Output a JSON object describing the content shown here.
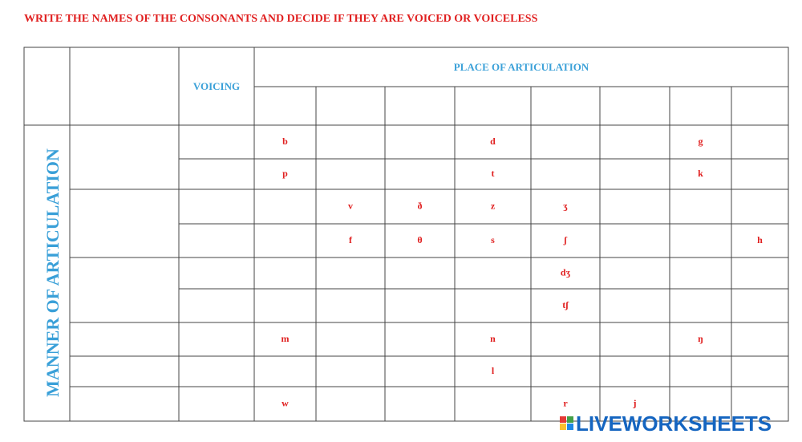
{
  "title": "WRITE THE NAMES OF THE CONSONANTS  AND DECIDE  IF THEY ARE VOICED  OR VOICELESS",
  "table": {
    "voicing_header": "VOICING",
    "place_header": "PLACE OF ARTICULATION",
    "manner_header": "MANNER OF ARTICULATION",
    "rows": [
      [
        "b",
        null,
        null,
        "d",
        null,
        null,
        "g",
        null
      ],
      [
        "p",
        null,
        null,
        "t",
        null,
        null,
        "k",
        null
      ],
      [
        null,
        "v",
        "ð",
        "z",
        "ʒ",
        null,
        null,
        null
      ],
      [
        null,
        "f",
        "θ",
        "s",
        "ʃ",
        null,
        null,
        "h"
      ],
      [
        null,
        null,
        null,
        null,
        "dʒ",
        null,
        null,
        null
      ],
      [
        null,
        null,
        null,
        null,
        "tʃ",
        null,
        null,
        null
      ],
      [
        "m",
        null,
        null,
        "n",
        null,
        null,
        "ŋ",
        null
      ],
      [
        null,
        null,
        null,
        "l",
        null,
        null,
        null,
        null
      ],
      [
        "w",
        null,
        null,
        null,
        "r",
        "j",
        null,
        null
      ]
    ]
  },
  "logo": "LIVEWORKSHEETS"
}
